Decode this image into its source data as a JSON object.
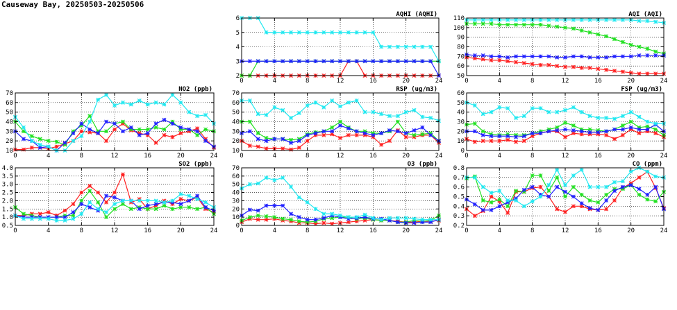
{
  "page": {
    "title": "Causeway Bay, 20250503-20250506"
  },
  "colors": {
    "red": "#ff2020",
    "green": "#20e020",
    "blue": "#2020ff",
    "cyan": "#20e8f0"
  },
  "chart_data": [
    {
      "type": "line",
      "title": "AQHI (AQHI)",
      "xlim": [
        0,
        24
      ],
      "xticks": [
        0,
        4,
        8,
        12,
        16,
        20,
        24
      ],
      "ylim": [
        2,
        6
      ],
      "yticks": [
        2,
        3,
        4,
        5,
        6
      ],
      "series": [
        {
          "color": "red",
          "values": [
            2,
            2,
            2,
            2,
            2,
            2,
            2,
            2,
            2,
            2,
            2,
            2,
            2,
            3,
            3,
            2,
            2,
            2,
            2,
            2,
            2,
            2,
            2,
            2,
            2
          ]
        },
        {
          "color": "green",
          "values": [
            2,
            2,
            3,
            3,
            3,
            3,
            3,
            3,
            3,
            3,
            3,
            3,
            3,
            3,
            3,
            3,
            3,
            3,
            3,
            3,
            3,
            3,
            3,
            3,
            3
          ]
        },
        {
          "color": "blue",
          "values": [
            3,
            3,
            3,
            3,
            3,
            3,
            3,
            3,
            3,
            3,
            3,
            3,
            3,
            3,
            3,
            3,
            3,
            3,
            3,
            3,
            3,
            3,
            3,
            3,
            2
          ]
        },
        {
          "color": "cyan",
          "values": [
            6,
            6,
            6,
            5,
            5,
            5,
            5,
            5,
            5,
            5,
            5,
            5,
            5,
            5,
            5,
            5,
            5,
            4,
            4,
            4,
            4,
            4,
            4,
            4,
            3
          ]
        }
      ]
    },
    {
      "type": "line",
      "title": "AQI (AQI)",
      "xlim": [
        0,
        24
      ],
      "xticks": [
        0,
        4,
        8,
        12,
        16,
        20,
        24
      ],
      "ylim": [
        50,
        110
      ],
      "yticks": [
        50,
        60,
        70,
        80,
        90,
        100,
        110
      ],
      "series": [
        {
          "color": "red",
          "values": [
            69,
            68,
            67,
            66,
            66,
            65,
            64,
            63,
            62,
            61,
            61,
            60,
            59,
            59,
            58,
            58,
            57,
            56,
            55,
            54,
            53,
            52,
            52,
            52,
            52
          ]
        },
        {
          "color": "green",
          "values": [
            104,
            104,
            104,
            104,
            103,
            103,
            103,
            103,
            103,
            103,
            102,
            101,
            100,
            99,
            97,
            95,
            93,
            91,
            88,
            85,
            82,
            80,
            78,
            75,
            73
          ]
        },
        {
          "color": "blue",
          "values": [
            72,
            71,
            71,
            70,
            70,
            69,
            70,
            70,
            70,
            70,
            70,
            69,
            69,
            70,
            70,
            69,
            69,
            69,
            70,
            70,
            70,
            71,
            71,
            71,
            71
          ]
        },
        {
          "color": "cyan",
          "values": [
            108,
            108,
            108,
            108,
            108,
            108,
            108,
            108,
            108,
            108,
            108,
            108,
            108,
            108,
            108,
            108,
            108,
            108,
            108,
            108,
            108,
            107,
            107,
            106,
            105
          ]
        }
      ]
    },
    {
      "type": "line",
      "title": "NO2 (ppb)",
      "xlim": [
        0,
        24
      ],
      "xticks": [
        0,
        4,
        8,
        12,
        16,
        20,
        24
      ],
      "ylim": [
        10,
        70
      ],
      "yticks": [
        10,
        20,
        30,
        40,
        50,
        60,
        70
      ],
      "series": [
        {
          "color": "red",
          "values": [
            11,
            11,
            13,
            13,
            12,
            14,
            17,
            20,
            30,
            29,
            28,
            20,
            32,
            38,
            31,
            28,
            26,
            18,
            26,
            24,
            28,
            30,
            33,
            22,
            13
          ]
        },
        {
          "color": "green",
          "values": [
            40,
            30,
            25,
            22,
            20,
            19,
            16,
            30,
            36,
            46,
            30,
            30,
            38,
            40,
            32,
            32,
            32,
            34,
            32,
            40,
            32,
            32,
            26,
            32,
            30
          ]
        },
        {
          "color": "blue",
          "values": [
            30,
            22,
            20,
            13,
            14,
            10,
            18,
            28,
            38,
            32,
            28,
            40,
            38,
            30,
            34,
            26,
            28,
            38,
            42,
            38,
            34,
            32,
            30,
            20,
            14
          ]
        },
        {
          "color": "cyan",
          "values": [
            45,
            34,
            20,
            16,
            14,
            10,
            10,
            20,
            25,
            40,
            63,
            68,
            57,
            60,
            58,
            62,
            58,
            60,
            58,
            68,
            60,
            50,
            46,
            47,
            38
          ]
        }
      ]
    },
    {
      "type": "line",
      "title": "RSP (ug/m3)",
      "xlim": [
        0,
        24
      ],
      "xticks": [
        0,
        4,
        8,
        12,
        16,
        20,
        24
      ],
      "ylim": [
        10,
        70
      ],
      "yticks": [
        10,
        20,
        30,
        40,
        50,
        60,
        70
      ],
      "series": [
        {
          "color": "red",
          "values": [
            20,
            15,
            14,
            12,
            12,
            12,
            11,
            13,
            20,
            26,
            26,
            27,
            23,
            26,
            26,
            26,
            24,
            16,
            20,
            31,
            24,
            24,
            26,
            26,
            18
          ]
        },
        {
          "color": "green",
          "values": [
            40,
            40,
            28,
            23,
            22,
            22,
            21,
            22,
            27,
            29,
            30,
            34,
            40,
            34,
            30,
            30,
            28,
            28,
            30,
            40,
            28,
            26,
            27,
            28,
            20
          ]
        },
        {
          "color": "blue",
          "values": [
            28,
            30,
            22,
            20,
            22,
            22,
            18,
            20,
            26,
            28,
            30,
            30,
            36,
            33,
            30,
            28,
            26,
            28,
            31,
            30,
            28,
            31,
            34,
            26,
            20
          ]
        },
        {
          "color": "cyan",
          "values": [
            62,
            62,
            48,
            47,
            55,
            52,
            44,
            49,
            57,
            60,
            55,
            62,
            56,
            60,
            62,
            50,
            50,
            48,
            46,
            46,
            50,
            52,
            45,
            44,
            41
          ]
        }
      ]
    },
    {
      "type": "line",
      "title": "FSP (ug/m3)",
      "xlim": [
        0,
        24
      ],
      "xticks": [
        0,
        4,
        8,
        12,
        16,
        20,
        24
      ],
      "ylim": [
        0,
        60
      ],
      "yticks": [
        0,
        10,
        20,
        30,
        40,
        50,
        60
      ],
      "series": [
        {
          "color": "red",
          "values": [
            12,
            9,
            10,
            10,
            10,
            11,
            9,
            10,
            15,
            18,
            20,
            20,
            14,
            18,
            17,
            17,
            17,
            16,
            12,
            16,
            22,
            18,
            20,
            18,
            14
          ]
        },
        {
          "color": "green",
          "values": [
            27,
            28,
            20,
            17,
            16,
            17,
            16,
            16,
            18,
            20,
            22,
            24,
            29,
            26,
            22,
            22,
            21,
            20,
            22,
            26,
            30,
            24,
            25,
            22,
            16
          ]
        },
        {
          "color": "blue",
          "values": [
            20,
            20,
            16,
            15,
            15,
            15,
            14,
            15,
            18,
            18,
            20,
            21,
            22,
            21,
            20,
            19,
            19,
            20,
            22,
            22,
            24,
            22,
            22,
            27,
            20
          ]
        },
        {
          "color": "cyan",
          "values": [
            50,
            47,
            38,
            40,
            45,
            44,
            34,
            36,
            44,
            44,
            40,
            40,
            42,
            45,
            40,
            36,
            34,
            34,
            33,
            36,
            40,
            35,
            30,
            28,
            28
          ]
        }
      ]
    },
    {
      "type": "line",
      "title": "SO2 (ppb)",
      "xlim": [
        0,
        24
      ],
      "xticks": [
        0,
        4,
        8,
        12,
        16,
        20,
        24
      ],
      "ylim": [
        0.5,
        4.0
      ],
      "yticks": [
        0.5,
        1.0,
        1.5,
        2.0,
        2.5,
        3.0,
        3.5,
        4.0
      ],
      "series": [
        {
          "color": "red",
          "values": [
            1.1,
            1.1,
            1.2,
            1.2,
            1.3,
            1.1,
            1.4,
            1.8,
            2.5,
            2.9,
            2.5,
            1.9,
            2.5,
            3.6,
            1.9,
            2.1,
            1.5,
            1.7,
            2.0,
            1.8,
            2.1,
            2.0,
            2.2,
            1.5,
            1.3
          ]
        },
        {
          "color": "green",
          "values": [
            1.6,
            1.2,
            1.1,
            1.0,
            1.0,
            1.0,
            1.1,
            1.1,
            2.0,
            2.6,
            1.9,
            1.0,
            1.5,
            1.8,
            1.5,
            1.6,
            1.5,
            1.5,
            1.7,
            1.5,
            1.6,
            1.6,
            1.5,
            1.6,
            1.2
          ]
        },
        {
          "color": "blue",
          "values": [
            1.1,
            1.0,
            1.0,
            1.0,
            1.0,
            1.0,
            1.0,
            1.3,
            1.8,
            1.6,
            1.4,
            2.3,
            2.2,
            2.0,
            2.0,
            1.5,
            1.7,
            1.8,
            1.9,
            1.9,
            1.8,
            2.0,
            2.3,
            1.6,
            1.4
          ]
        },
        {
          "color": "cyan",
          "values": [
            1.1,
            0.9,
            0.9,
            0.9,
            0.9,
            0.8,
            0.8,
            0.9,
            1.2,
            1.9,
            1.5,
            1.3,
            1.8,
            2.0,
            2.0,
            2.0,
            2.0,
            2.0,
            1.9,
            2.0,
            2.4,
            2.3,
            2.1,
            1.9,
            1.6
          ]
        }
      ]
    },
    {
      "type": "line",
      "title": "O3 (ppb)",
      "xlim": [
        0,
        24
      ],
      "xticks": [
        0,
        4,
        8,
        12,
        16,
        20,
        24
      ],
      "ylim": [
        0,
        70
      ],
      "yticks": [
        0,
        10,
        20,
        30,
        40,
        50,
        60,
        70
      ],
      "series": [
        {
          "color": "red",
          "values": [
            4,
            8,
            7,
            7,
            8,
            6,
            5,
            3,
            3,
            2,
            3,
            2,
            3,
            4,
            5,
            6,
            7,
            6,
            6,
            5,
            4,
            4,
            5,
            5,
            6
          ]
        },
        {
          "color": "green",
          "values": [
            6,
            10,
            12,
            11,
            10,
            8,
            7,
            5,
            4,
            5,
            8,
            9,
            10,
            10,
            8,
            9,
            7,
            6,
            6,
            4,
            4,
            6,
            5,
            6,
            12
          ]
        },
        {
          "color": "blue",
          "values": [
            12,
            19,
            18,
            24,
            24,
            24,
            14,
            10,
            7,
            7,
            9,
            12,
            10,
            8,
            9,
            10,
            8,
            8,
            6,
            4,
            3,
            3,
            4,
            4,
            7
          ]
        },
        {
          "color": "cyan",
          "values": [
            45,
            50,
            51,
            58,
            55,
            58,
            47,
            34,
            28,
            20,
            14,
            14,
            12,
            10,
            10,
            13,
            9,
            7,
            9,
            9,
            9,
            8,
            7,
            7,
            7
          ]
        }
      ]
    },
    {
      "type": "line",
      "title": "CO (ppm)",
      "xlim": [
        0,
        24
      ],
      "xticks": [
        0,
        4,
        8,
        12,
        16,
        20,
        24
      ],
      "ylim": [
        0.2,
        0.8
      ],
      "yticks": [
        0.2,
        0.3,
        0.4,
        0.5,
        0.6,
        0.7,
        0.8
      ],
      "series": [
        {
          "color": "red",
          "values": [
            0.37,
            0.3,
            0.35,
            0.5,
            0.45,
            0.33,
            0.55,
            0.55,
            0.59,
            0.6,
            0.5,
            0.37,
            0.34,
            0.4,
            0.4,
            0.37,
            0.36,
            0.37,
            0.46,
            0.59,
            0.64,
            0.7,
            0.76,
            0.59,
            0.38
          ]
        },
        {
          "color": "green",
          "values": [
            0.69,
            0.71,
            0.46,
            0.44,
            0.47,
            0.4,
            0.56,
            0.55,
            0.72,
            0.72,
            0.56,
            0.7,
            0.5,
            0.6,
            0.52,
            0.46,
            0.44,
            0.52,
            0.58,
            0.58,
            0.62,
            0.52,
            0.47,
            0.45,
            0.55
          ]
        },
        {
          "color": "blue",
          "values": [
            0.47,
            0.42,
            0.36,
            0.36,
            0.4,
            0.44,
            0.48,
            0.57,
            0.6,
            0.52,
            0.5,
            0.6,
            0.55,
            0.5,
            0.43,
            0.38,
            0.36,
            0.46,
            0.56,
            0.6,
            0.62,
            0.58,
            0.52,
            0.6,
            0.37
          ]
        },
        {
          "color": "cyan",
          "values": [
            0.7,
            0.7,
            0.6,
            0.54,
            0.56,
            0.46,
            0.46,
            0.4,
            0.45,
            0.5,
            0.62,
            0.78,
            0.62,
            0.72,
            0.78,
            0.6,
            0.6,
            0.6,
            0.65,
            0.66,
            0.76,
            0.8,
            0.76,
            0.71,
            0.7
          ]
        }
      ]
    }
  ]
}
